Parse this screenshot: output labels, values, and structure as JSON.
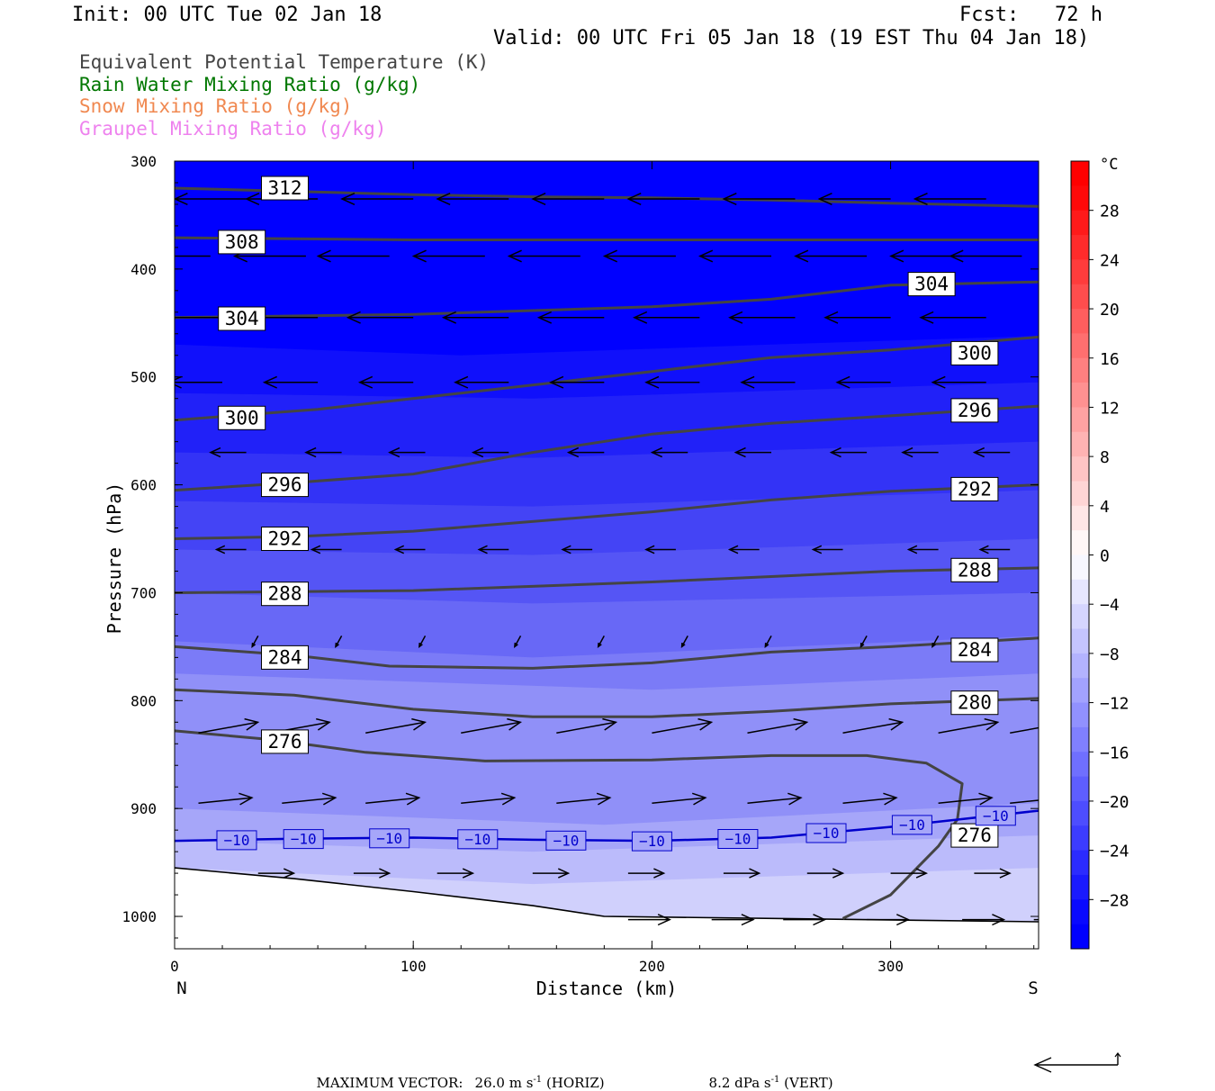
{
  "header": {
    "init": "Init: 00 UTC Tue 02 Jan 18",
    "fcst": "Fcst:   72 h",
    "valid": "Valid: 00 UTC Fri 05 Jan 18 (19 EST Thu 04 Jan 18)"
  },
  "legend": [
    {
      "label": "Equivalent Potential Temperature (K)",
      "color": "#444444"
    },
    {
      "label": "Rain Water Mixing Ratio (g/kg)",
      "color": "#007700"
    },
    {
      "label": "Snow Mixing Ratio (g/kg)",
      "color": "#f08850"
    },
    {
      "label": "Graupel Mixing Ratio (g/kg)",
      "color": "#ee82ee"
    }
  ],
  "footer": {
    "prefix": "MAXIMUM VECTOR:",
    "horiz_value": "26.0 m s",
    "horiz_unit": "(HORIZ)",
    "vert_value": "8.2 dPa s",
    "vert_unit": "(VERT)",
    "exponent": "-1"
  },
  "chart_data": {
    "type": "heatmap",
    "xlabel": "Distance (km)",
    "ylabel": "Pressure (hPa)",
    "xlim": [
      0,
      362
    ],
    "ylim": [
      1030,
      300
    ],
    "x_ticks": [
      0,
      100,
      200,
      300
    ],
    "y_ticks": [
      300,
      400,
      500,
      600,
      700,
      800,
      900,
      1000
    ],
    "x_end_labels": {
      "left": "N",
      "right": "S"
    },
    "colorbar": {
      "unit": "°C",
      "tick_labels": [
        "28",
        "24",
        "20",
        "16",
        "12",
        "8",
        "4",
        "0",
        "−4",
        "−8",
        "−12",
        "−16",
        "−20",
        "−24",
        "−28"
      ],
      "tick_values": [
        28,
        24,
        20,
        16,
        12,
        8,
        4,
        0,
        -4,
        -8,
        -12,
        -16,
        -20,
        -24,
        -28
      ],
      "range": [
        -32,
        32
      ],
      "steps": 32,
      "warm_color": "#ff0000",
      "cold_color": "#0000ff"
    },
    "temperature_fill": [
      {
        "from": -32,
        "to": -26,
        "color": "#0000ff",
        "bottom": [
          [
            0,
            470
          ],
          [
            120,
            480
          ],
          [
            250,
            470
          ],
          [
            362,
            462
          ]
        ]
      },
      {
        "from": -26,
        "to": -24,
        "color": "#1010fb",
        "bottom": [
          [
            0,
            515
          ],
          [
            150,
            520
          ],
          [
            362,
            505
          ]
        ]
      },
      {
        "from": -24,
        "to": -22,
        "color": "#2121f8",
        "bottom": [
          [
            0,
            570
          ],
          [
            150,
            575
          ],
          [
            362,
            560
          ]
        ]
      },
      {
        "from": -22,
        "to": -20,
        "color": "#3333f6",
        "bottom": [
          [
            0,
            615
          ],
          [
            150,
            620
          ],
          [
            362,
            605
          ]
        ]
      },
      {
        "from": -20,
        "to": -18,
        "color": "#4444f5",
        "bottom": [
          [
            0,
            660
          ],
          [
            150,
            665
          ],
          [
            362,
            650
          ]
        ]
      },
      {
        "from": -18,
        "to": -16,
        "color": "#5555f5",
        "bottom": [
          [
            0,
            700
          ],
          [
            150,
            710
          ],
          [
            362,
            700
          ]
        ]
      },
      {
        "from": -16,
        "to": -14,
        "color": "#6868f6",
        "bottom": [
          [
            0,
            745
          ],
          [
            150,
            760
          ],
          [
            362,
            740
          ]
        ]
      },
      {
        "from": -14,
        "to": -12,
        "color": "#7b7bf7",
        "bottom": [
          [
            0,
            775
          ],
          [
            200,
            790
          ],
          [
            362,
            775
          ]
        ]
      },
      {
        "from": -12,
        "to": -10,
        "color": "#9090f8",
        "bottom": [
          [
            0,
            900
          ],
          [
            180,
            915
          ],
          [
            362,
            895
          ]
        ]
      },
      {
        "from": -10,
        "to": -8,
        "color": "#a6a6f9",
        "bottom": [
          [
            0,
            930
          ],
          [
            150,
            940
          ],
          [
            362,
            925
          ]
        ]
      },
      {
        "from": -8,
        "to": -6,
        "color": "#bbbbfb",
        "bottom": [
          [
            0,
            955
          ],
          [
            150,
            970
          ],
          [
            362,
            955
          ]
        ]
      },
      {
        "from": -6,
        "to": -4,
        "color": "#d0d0fc",
        "bottom": [
          [
            0,
            1030
          ],
          [
            362,
            1030
          ]
        ]
      }
    ],
    "terrain": [
      [
        0,
        955
      ],
      [
        50,
        965
      ],
      [
        100,
        977
      ],
      [
        150,
        990
      ],
      [
        180,
        1000
      ],
      [
        362,
        1005
      ]
    ],
    "isotherm": {
      "label": "−10",
      "color": "#0000cc",
      "points": [
        [
          0,
          930
        ],
        [
          50,
          928
        ],
        [
          100,
          927
        ],
        [
          150,
          929
        ],
        [
          200,
          930
        ],
        [
          250,
          927
        ],
        [
          300,
          917
        ],
        [
          362,
          902
        ]
      ],
      "label_x": [
        26,
        54,
        90,
        127,
        164,
        200,
        236,
        273,
        309,
        344
      ]
    },
    "theta_e": {
      "color": "#444444",
      "lines": [
        {
          "label": "312",
          "points": [
            [
              0,
              325
            ],
            [
              50,
              328
            ],
            [
              100,
              331
            ],
            [
              150,
              333
            ],
            [
              200,
              334
            ],
            [
              250,
              336
            ],
            [
              300,
              339
            ],
            [
              362,
              342
            ]
          ],
          "label_pos": [
            [
              36,
              325
            ]
          ]
        },
        {
          "label": "308",
          "points": [
            [
              0,
              371
            ],
            [
              100,
              373
            ],
            [
              200,
              373
            ],
            [
              300,
              373
            ],
            [
              362,
              373
            ]
          ],
          "label_pos": [
            [
              18,
              375
            ]
          ]
        },
        {
          "label": "304",
          "points": [
            [
              0,
              445
            ],
            [
              100,
              442
            ],
            [
              200,
              435
            ],
            [
              250,
              428
            ],
            [
              300,
              415
            ],
            [
              362,
              412
            ]
          ],
          "label_pos": [
            [
              18,
              446
            ],
            [
              307,
              414
            ]
          ]
        },
        {
          "label": "300",
          "points": [
            [
              0,
              540
            ],
            [
              60,
              530
            ],
            [
              120,
              515
            ],
            [
              200,
              495
            ],
            [
              250,
              482
            ],
            [
              300,
              475
            ],
            [
              362,
              463
            ]
          ],
          "label_pos": [
            [
              18,
              538
            ],
            [
              325,
              478
            ]
          ]
        },
        {
          "label": "296",
          "points": [
            [
              0,
              605
            ],
            [
              50,
              598
            ],
            [
              100,
              590
            ],
            [
              150,
              570
            ],
            [
              200,
              553
            ],
            [
              250,
              543
            ],
            [
              300,
              536
            ],
            [
              362,
              527
            ]
          ],
          "label_pos": [
            [
              36,
              600
            ],
            [
              325,
              531
            ]
          ]
        },
        {
          "label": "292",
          "points": [
            [
              0,
              650
            ],
            [
              50,
              648
            ],
            [
              100,
              643
            ],
            [
              200,
              625
            ],
            [
              250,
              614
            ],
            [
              300,
              606
            ],
            [
              362,
              600
            ]
          ],
          "label_pos": [
            [
              36,
              650
            ],
            [
              325,
              604
            ]
          ]
        },
        {
          "label": "288",
          "points": [
            [
              0,
              700
            ],
            [
              100,
              698
            ],
            [
              200,
              690
            ],
            [
              250,
              685
            ],
            [
              300,
              680
            ],
            [
              362,
              677
            ]
          ],
          "label_pos": [
            [
              36,
              701
            ],
            [
              325,
              679
            ]
          ]
        },
        {
          "label": "284",
          "points": [
            [
              0,
              750
            ],
            [
              50,
              758
            ],
            [
              90,
              768
            ],
            [
              150,
              770
            ],
            [
              200,
              765
            ],
            [
              250,
              755
            ],
            [
              300,
              750
            ],
            [
              362,
              742
            ]
          ],
          "label_pos": [
            [
              36,
              760
            ],
            [
              325,
              753
            ]
          ]
        },
        {
          "label": "280",
          "points": [
            [
              0,
              790
            ],
            [
              50,
              795
            ],
            [
              100,
              808
            ],
            [
              150,
              815
            ],
            [
              200,
              815
            ],
            [
              250,
              810
            ],
            [
              300,
              803
            ],
            [
              362,
              798
            ]
          ],
          "label_pos": [
            [
              325,
              802
            ]
          ]
        },
        {
          "label": "276",
          "points": [
            [
              0,
              828
            ],
            [
              40,
              836
            ],
            [
              80,
              848
            ],
            [
              130,
              856
            ],
            [
              200,
              855
            ],
            [
              250,
              851
            ],
            [
              290,
              851
            ],
            [
              315,
              858
            ],
            [
              330,
              877
            ],
            [
              328,
              910
            ],
            [
              320,
              935
            ],
            [
              300,
              980
            ],
            [
              280,
              1002
            ]
          ],
          "label_pos": [
            [
              36,
              838
            ],
            [
              325,
              925
            ]
          ]
        }
      ]
    },
    "wind_vectors": [
      {
        "p": 335,
        "x": [
          30,
          60,
          100,
          140,
          180,
          220,
          260,
          300,
          340
        ],
        "u": -24,
        "w": 0
      },
      {
        "p": 388,
        "x": [
          15,
          55,
          90,
          130,
          170,
          210,
          250,
          290,
          330,
          355
        ],
        "u": -24,
        "w": 0
      },
      {
        "p": 445,
        "x": [
          20,
          60,
          100,
          140,
          180,
          220,
          260,
          300,
          340
        ],
        "u": -22,
        "w": 0
      },
      {
        "p": 505,
        "x": [
          20,
          60,
          100,
          140,
          180,
          220,
          260,
          300,
          340
        ],
        "u": -18,
        "w": 0
      },
      {
        "p": 570,
        "x": [
          30,
          70,
          105,
          140,
          180,
          215,
          250,
          290,
          320,
          350
        ],
        "u": -12,
        "w": 0
      },
      {
        "p": 660,
        "x": [
          30,
          70,
          105,
          140,
          175,
          210,
          245,
          280,
          320,
          350
        ],
        "u": -10,
        "w": 0
      },
      {
        "p": 740,
        "x": [
          35,
          70,
          105,
          145,
          180,
          215,
          250,
          290,
          320
        ],
        "u": -2,
        "w": 2
      },
      {
        "p": 830,
        "x": [
          10,
          40,
          80,
          120,
          160,
          200,
          240,
          280,
          320,
          350
        ],
        "u": 20,
        "w": -2
      },
      {
        "p": 895,
        "x": [
          10,
          45,
          80,
          120,
          160,
          200,
          240,
          280,
          320,
          350
        ],
        "u": 18,
        "w": -1
      },
      {
        "p": 960,
        "x": [
          35,
          75,
          110,
          150,
          190,
          230,
          265,
          300,
          335
        ],
        "u": 12,
        "w": 0
      },
      {
        "p": 1003,
        "x": [
          190,
          225,
          255,
          290,
          330,
          360
        ],
        "u": 14,
        "w": 0
      }
    ]
  }
}
